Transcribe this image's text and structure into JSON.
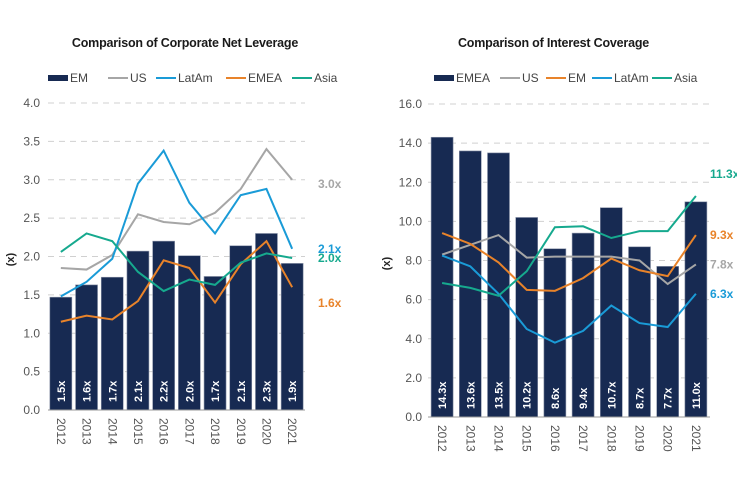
{
  "chart_data": [
    {
      "type": "bar",
      "title": "Comparison of Corporate Net Leverage",
      "xlabel": "",
      "ylabel": "(x)",
      "ylim": [
        0,
        4.0
      ],
      "yticks": [
        "0.0",
        "0.5",
        "1.0",
        "1.5",
        "2.0",
        "2.5",
        "3.0",
        "3.5",
        "4.0"
      ],
      "ytick_values": [
        0,
        0.5,
        1.0,
        1.5,
        2.0,
        2.5,
        3.0,
        3.5,
        4.0
      ],
      "grid": true,
      "legend_position": "top",
      "categories": [
        "2012",
        "2013",
        "2014",
        "2015",
        "2016",
        "2017",
        "2018",
        "2019",
        "2020",
        "2021"
      ],
      "bar_series": {
        "name": "EM",
        "color": "#172a52",
        "values": [
          1.47,
          1.63,
          1.73,
          2.07,
          2.2,
          2.01,
          1.74,
          2.14,
          2.3,
          1.91
        ],
        "labels": [
          "1.5x",
          "1.6x",
          "1.7x",
          "2.1x",
          "2.2x",
          "2.0x",
          "1.7x",
          "2.1x",
          "2.3x",
          "1.9x"
        ]
      },
      "series": [
        {
          "name": "US",
          "color": "#a6a6a6",
          "values": [
            1.85,
            1.83,
            2.02,
            2.55,
            2.45,
            2.42,
            2.57,
            2.88,
            3.4,
            3.0
          ],
          "end_label": "3.0x"
        },
        {
          "name": "LatAm",
          "color": "#1a9bd7",
          "values": [
            1.48,
            1.67,
            1.97,
            2.95,
            3.38,
            2.7,
            2.3,
            2.8,
            2.88,
            2.1
          ],
          "end_label": "2.1x"
        },
        {
          "name": "EMEA",
          "color": "#e8832a",
          "values": [
            1.15,
            1.23,
            1.18,
            1.42,
            1.95,
            1.85,
            1.4,
            1.9,
            2.2,
            1.6
          ],
          "end_label": "1.6x"
        },
        {
          "name": "Asia",
          "color": "#16a98e",
          "values": [
            2.06,
            2.3,
            2.2,
            1.8,
            1.55,
            1.7,
            1.63,
            1.92,
            2.04,
            1.98
          ],
          "end_label": "2.0x"
        }
      ],
      "legend": [
        "EM",
        "US",
        "LatAm",
        "EMEA",
        "Asia"
      ]
    },
    {
      "type": "bar",
      "title": "Comparison of Interest Coverage",
      "xlabel": "",
      "ylabel": "(x)",
      "ylim": [
        0,
        16.0
      ],
      "yticks": [
        "0.0",
        "2.0",
        "4.0",
        "6.0",
        "8.0",
        "10.0",
        "12.0",
        "14.0",
        "16.0"
      ],
      "ytick_values": [
        0,
        2,
        4,
        6,
        8,
        10,
        12,
        14,
        16
      ],
      "grid": true,
      "legend_position": "top",
      "categories": [
        "2012",
        "2013",
        "2014",
        "2015",
        "2016",
        "2017",
        "2018",
        "2019",
        "2020",
        "2021"
      ],
      "bar_series": {
        "name": "EMEA",
        "color": "#172a52",
        "values": [
          14.3,
          13.6,
          13.5,
          10.2,
          8.6,
          9.4,
          10.7,
          8.7,
          7.7,
          11.0
        ],
        "labels": [
          "14.3x",
          "13.6x",
          "13.5x",
          "10.2x",
          "8.6x",
          "9.4x",
          "10.7x",
          "8.7x",
          "7.7x",
          "11.0x"
        ]
      },
      "series": [
        {
          "name": "US",
          "color": "#a6a6a6",
          "values": [
            8.3,
            8.8,
            9.3,
            8.15,
            8.2,
            8.2,
            8.2,
            8.0,
            6.8,
            7.8
          ],
          "end_label": "7.8x"
        },
        {
          "name": "EM",
          "color": "#e8832a",
          "values": [
            9.4,
            8.85,
            7.9,
            6.5,
            6.45,
            7.1,
            8.1,
            7.5,
            7.2,
            9.3
          ],
          "end_label": "9.3x"
        },
        {
          "name": "LatAm",
          "color": "#1a9bd7",
          "values": [
            8.25,
            7.7,
            6.3,
            4.5,
            3.8,
            4.4,
            5.7,
            4.8,
            4.6,
            6.3
          ],
          "end_label": "6.3x"
        },
        {
          "name": "Asia",
          "color": "#16a98e",
          "values": [
            6.85,
            6.6,
            6.2,
            7.45,
            9.7,
            9.75,
            9.15,
            9.5,
            9.5,
            11.3
          ],
          "end_label": "11.3x"
        }
      ],
      "legend": [
        "EMEA",
        "US",
        "EM",
        "LatAm",
        "Asia"
      ]
    }
  ]
}
